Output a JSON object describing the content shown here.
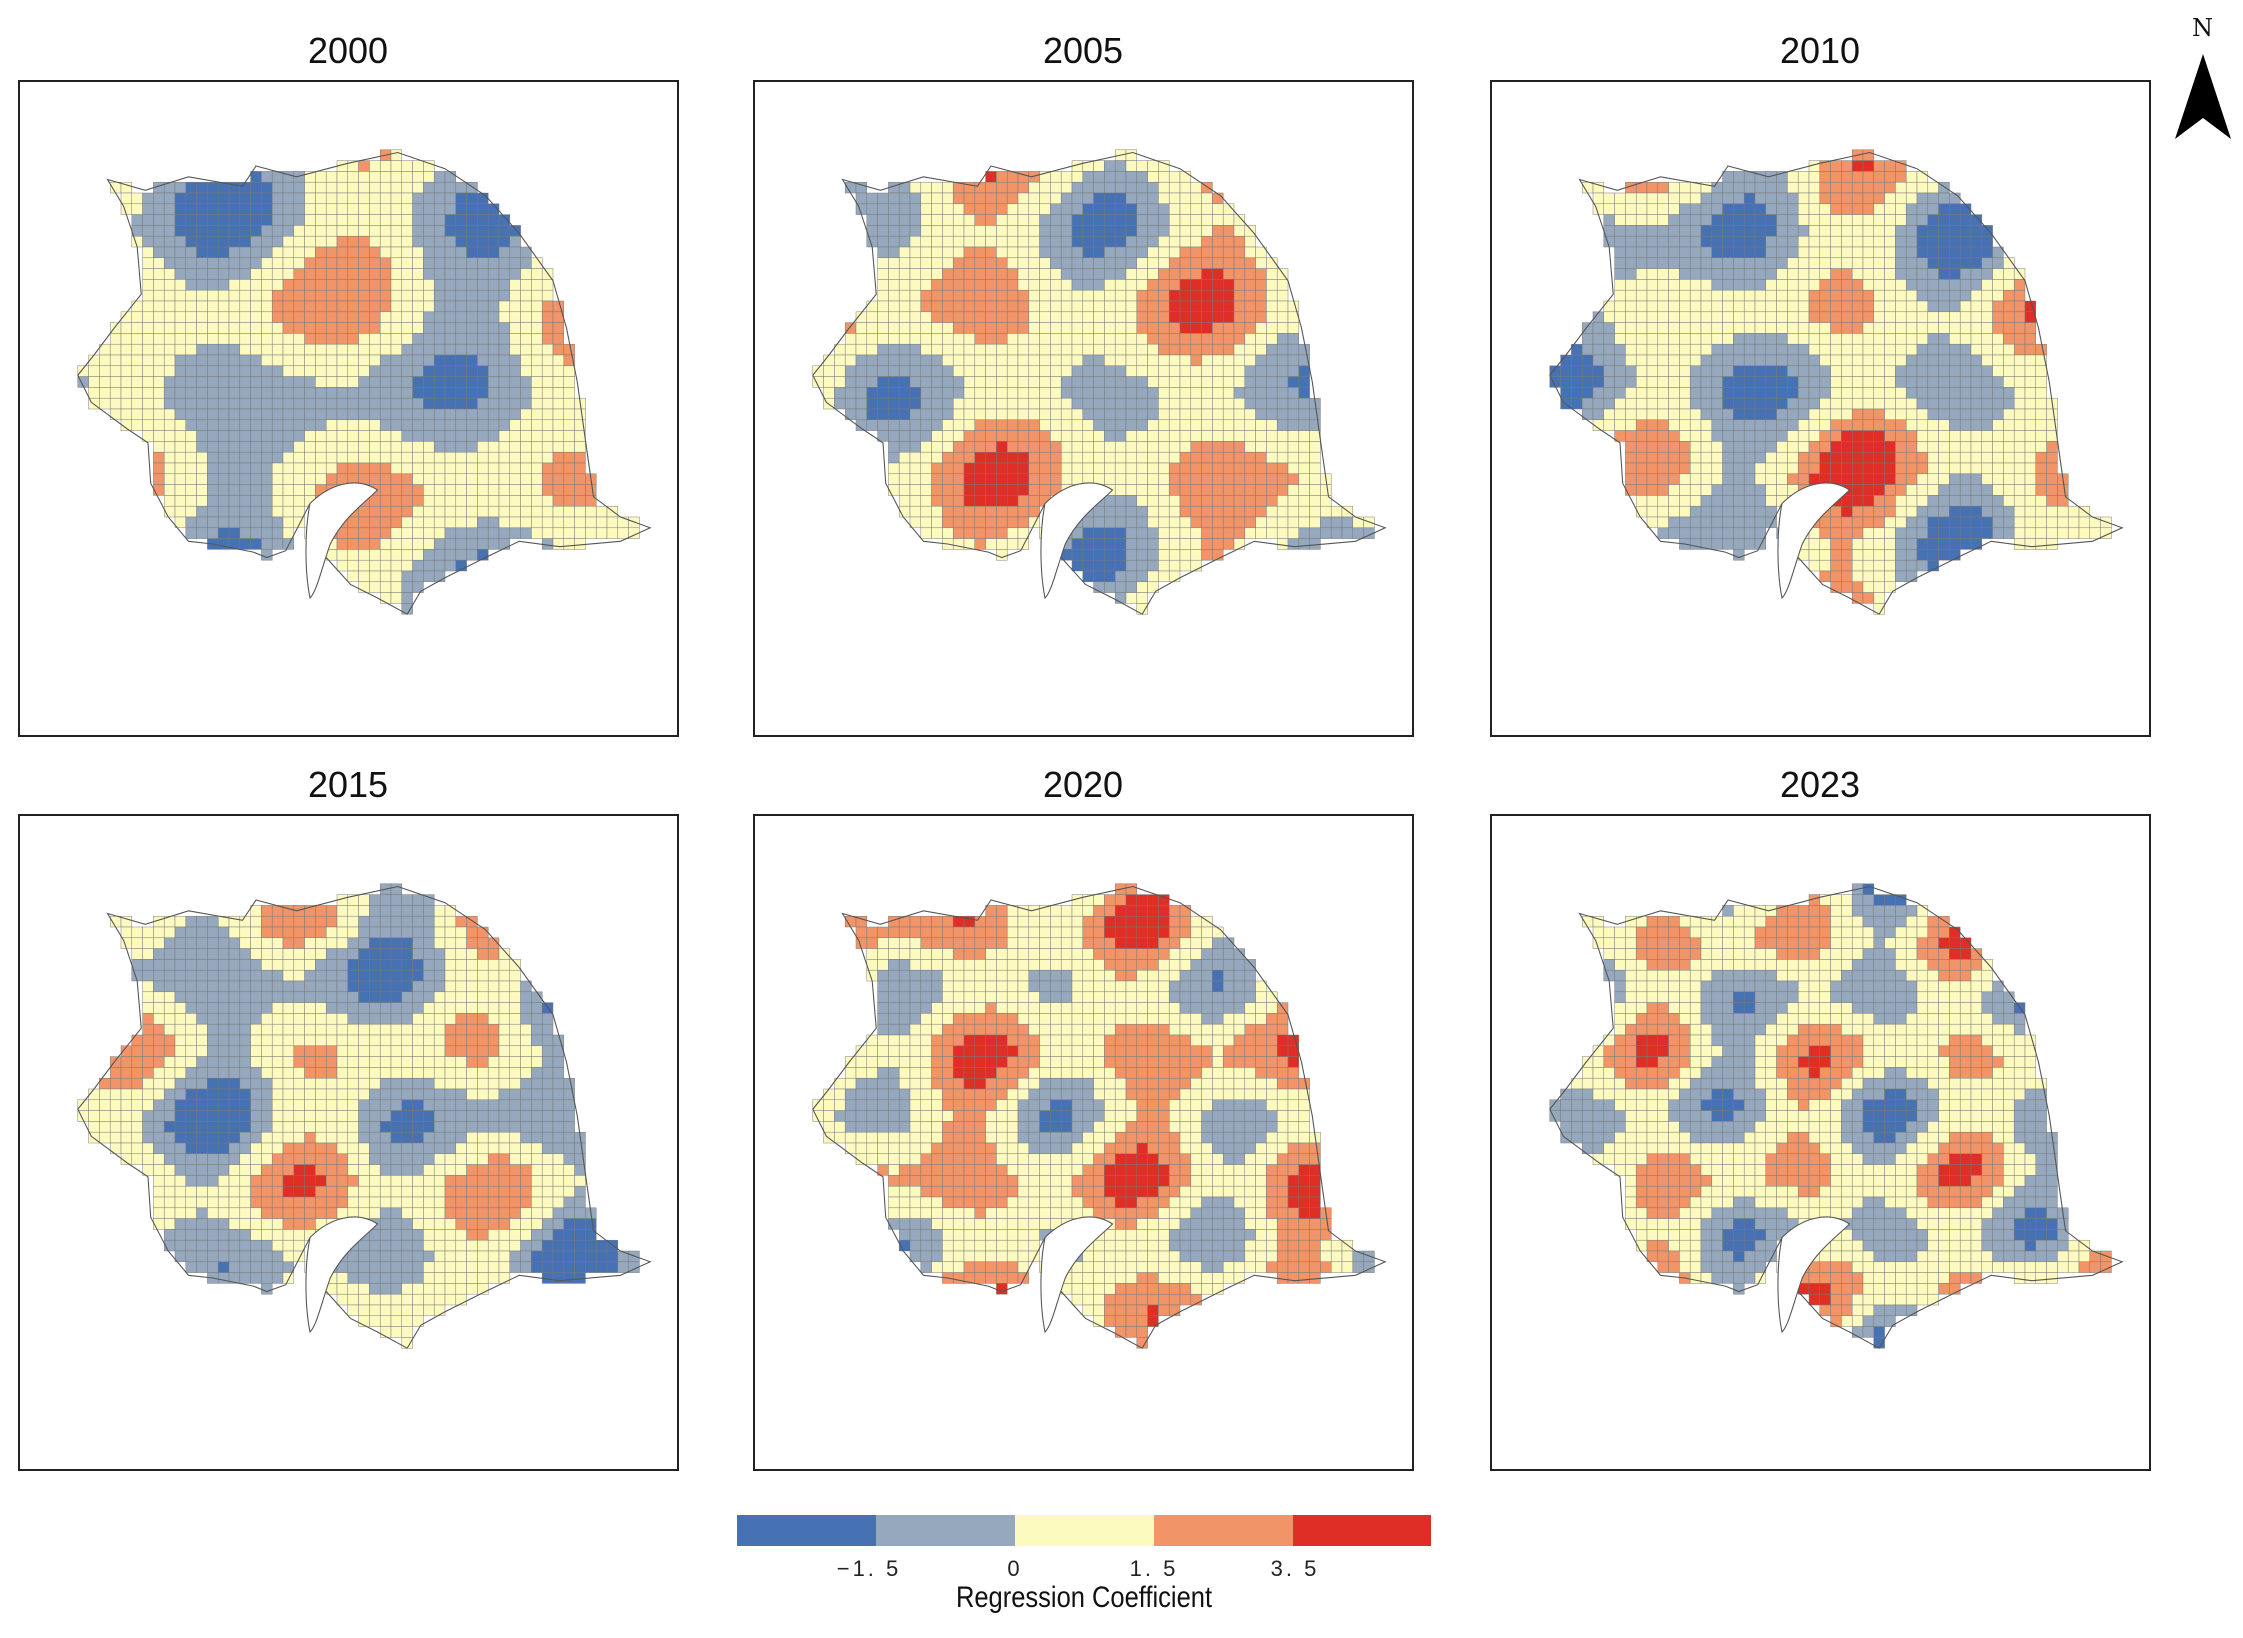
{
  "figure": {
    "north_label": "N",
    "panels": [
      {
        "year": "2000"
      },
      {
        "year": "2005"
      },
      {
        "year": "2010"
      },
      {
        "year": "2015"
      },
      {
        "year": "2020"
      },
      {
        "year": "2023"
      }
    ]
  },
  "legend": {
    "title": "Regression Coefficient",
    "classes": [
      {
        "color": "#4672b4"
      },
      {
        "color": "#95a8bd"
      },
      {
        "color": "#fdfac0"
      },
      {
        "color": "#f19468"
      },
      {
        "color": "#de2e26"
      }
    ],
    "ticks": [
      "−1. 5",
      "0",
      "1. 5",
      "3. 5"
    ]
  },
  "colors": {
    "grid_line": "#777777",
    "outline": "#555555"
  }
}
